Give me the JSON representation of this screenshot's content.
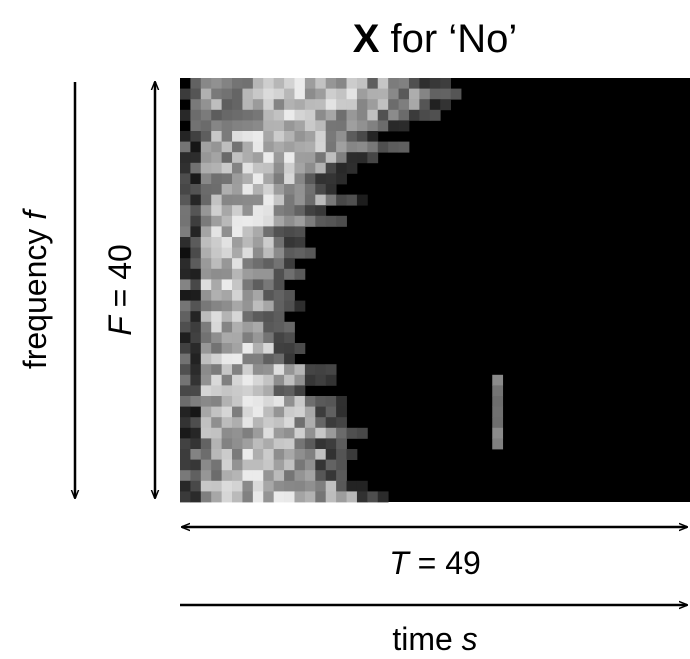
{
  "title": {
    "symbol": "X",
    "text": "for ‘No’"
  },
  "frequency_axis": {
    "label": "frequency",
    "symbol": "f"
  },
  "height_label": {
    "symbol": "F",
    "relation": "=",
    "value": "40"
  },
  "width_label": {
    "symbol": "T",
    "relation": "=",
    "value": "49"
  },
  "time_axis": {
    "label": "time",
    "symbol": "s"
  }
}
